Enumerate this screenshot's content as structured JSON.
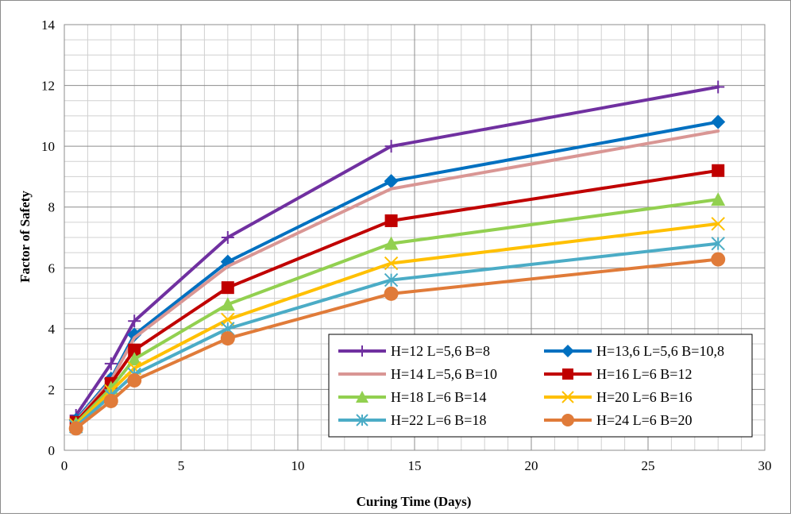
{
  "chart_data": {
    "type": "line",
    "title": "",
    "xlabel": "Curing Time (Days)",
    "ylabel": "Factor of Safety",
    "xlim": [
      0,
      30
    ],
    "ylim": [
      0,
      14
    ],
    "x_ticks": [
      0,
      5,
      10,
      15,
      20,
      25,
      30
    ],
    "y_ticks": [
      0,
      2,
      4,
      6,
      8,
      10,
      12,
      14
    ],
    "grid": true,
    "legend_position": "bottom-right",
    "x": [
      0.5,
      2,
      3,
      7,
      14,
      28
    ],
    "series": [
      {
        "name": "H=12 L=5,6 B=8",
        "color": "#7030a0",
        "marker": "plus",
        "values": [
          1.15,
          2.85,
          4.25,
          7.0,
          10.0,
          11.95
        ]
      },
      {
        "name": "H=13,6 L=5,6 B=10,8",
        "color": "#0070c0",
        "marker": "diamond",
        "values": [
          1.0,
          2.35,
          3.8,
          6.2,
          8.85,
          10.8
        ]
      },
      {
        "name": "H=14 L=5,6 B=10",
        "color": "#d99694",
        "marker": "none",
        "values": [
          0.95,
          2.3,
          3.7,
          6.05,
          8.6,
          10.5
        ]
      },
      {
        "name": "H=16 L=6 B=12",
        "color": "#c00000",
        "marker": "square",
        "values": [
          0.92,
          2.2,
          3.3,
          5.35,
          7.55,
          9.2
        ]
      },
      {
        "name": "H=18 L=6 B=14",
        "color": "#92d050",
        "marker": "triangle",
        "values": [
          0.88,
          2.05,
          3.0,
          4.8,
          6.8,
          8.25
        ]
      },
      {
        "name": "H=20 L=6 B=16",
        "color": "#ffc000",
        "marker": "x",
        "values": [
          0.83,
          1.95,
          2.7,
          4.3,
          6.15,
          7.45
        ]
      },
      {
        "name": "H=22 L=6 B=18",
        "color": "#4bacc6",
        "marker": "asterisk",
        "values": [
          0.78,
          1.8,
          2.5,
          4.0,
          5.6,
          6.8
        ]
      },
      {
        "name": "H=24 L=6 B=20",
        "color": "#e07b39",
        "marker": "circle",
        "values": [
          0.72,
          1.62,
          2.3,
          3.68,
          5.15,
          6.28
        ]
      }
    ]
  }
}
